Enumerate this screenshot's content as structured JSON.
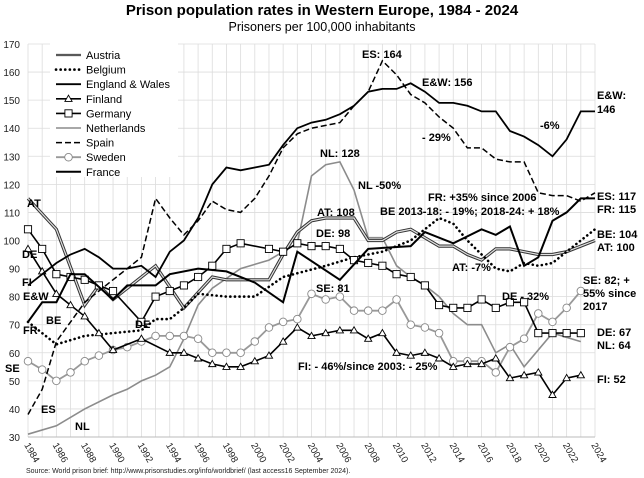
{
  "chart_data": {
    "type": "line",
    "title": "Prison population rates in Western Europe, 1984 - 2024",
    "subtitle": "Prisoners per 100,000 inhabitants",
    "source": "Source: World prison brief: http://www.prisonstudies.org/info/worldbrief/  (last access16 September 2024).",
    "xlim": [
      1984,
      2024
    ],
    "ylim": [
      30,
      170
    ],
    "x_ticks": [
      "1984",
      "1986",
      "1988",
      "1990",
      "1992",
      "1994",
      "1996",
      "1998",
      "2000",
      "2002",
      "2004",
      "2006",
      "2008",
      "2010",
      "2012",
      "2014",
      "2016",
      "2018",
      "2020",
      "2022",
      "2024"
    ],
    "y_ticks": [
      "30",
      "40",
      "50",
      "60",
      "70",
      "80",
      "90",
      "100",
      "110",
      "120",
      "130",
      "140",
      "150",
      "160",
      "170"
    ],
    "grid": true,
    "legend": "top-left",
    "series": [
      {
        "name": "Austria",
        "style": "double",
        "color": "#333333",
        "x": [
          1984,
          1986,
          1988,
          1989,
          1990,
          1993,
          1995,
          1997,
          1998,
          1999,
          2000,
          2001,
          2002,
          2003,
          2004,
          2005,
          2006,
          2007,
          2008,
          2009,
          2010,
          2011,
          2012,
          2013,
          2014,
          2015,
          2016,
          2017,
          2018,
          2019,
          2020,
          2021,
          2022,
          2023,
          2024
        ],
        "y": [
          115,
          104,
          77,
          84,
          79,
          91,
          76,
          87,
          86,
          86,
          86,
          86,
          95,
          103,
          107,
          108,
          108,
          108,
          100,
          100,
          103,
          104,
          101,
          98,
          98,
          95,
          93,
          97,
          97,
          96,
          95,
          95,
          96,
          98,
          100
        ]
      },
      {
        "name": "Belgium",
        "style": "dotted",
        "color": "#000000",
        "x": [
          1984,
          1986,
          1988,
          1990,
          1992,
          1993,
          1994,
          1995,
          1996,
          1998,
          2000,
          2002,
          2005,
          2007,
          2009,
          2011,
          2013,
          2014,
          2015,
          2016,
          2017,
          2018,
          2019,
          2020,
          2021,
          2022,
          2023,
          2024
        ],
        "y": [
          71,
          63,
          66,
          67,
          68,
          72,
          72,
          76,
          81,
          80,
          80,
          87,
          91,
          94,
          96,
          100,
          108,
          106,
          100,
          95,
          90,
          89,
          92,
          91,
          92,
          96,
          100,
          104
        ]
      },
      {
        "name": "England & Wales",
        "style": "solid",
        "color": "#000000",
        "x": [
          1984,
          1985,
          1986,
          1987,
          1988,
          1989,
          1990,
          1991,
          1992,
          1993,
          1994,
          1995,
          1996,
          1997,
          1998,
          1999,
          2000,
          2001,
          2002,
          2003,
          2004,
          2005,
          2006,
          2007,
          2008,
          2009,
          2010,
          2011,
          2012,
          2013,
          2014,
          2015,
          2016,
          2017,
          2018,
          2019,
          2020,
          2021,
          2022,
          2023,
          2024
        ],
        "y": [
          84,
          88,
          92,
          95,
          97,
          94,
          90,
          90,
          91,
          87,
          96,
          100,
          108,
          120,
          126,
          125,
          126,
          127,
          134,
          140,
          142,
          143,
          145,
          148,
          153,
          154,
          154,
          156,
          153,
          149,
          149,
          148,
          146,
          146,
          139,
          137,
          134,
          130,
          136,
          146,
          146
        ]
      },
      {
        "name": "Finland",
        "style": "triangle",
        "color": "#000000",
        "x": [
          1984,
          1985,
          1986,
          1987,
          1988,
          1989,
          1990,
          1992,
          1994,
          1995,
          1996,
          1997,
          1998,
          1999,
          2000,
          2001,
          2002,
          2003,
          2004,
          2005,
          2006,
          2007,
          2008,
          2009,
          2010,
          2011,
          2012,
          2013,
          2014,
          2015,
          2016,
          2017,
          2018,
          2019,
          2020,
          2021,
          2022,
          2023
        ],
        "y": [
          97,
          89,
          81,
          77,
          73,
          67,
          61,
          65,
          60,
          60,
          58,
          56,
          55,
          55,
          57,
          59,
          64,
          69,
          66,
          67,
          68,
          68,
          65,
          67,
          60,
          59,
          60,
          58,
          55,
          56,
          56,
          58,
          51,
          52,
          53,
          45,
          51,
          52
        ]
      },
      {
        "name": "Germany",
        "style": "square",
        "color": "#000000",
        "x": [
          1984,
          1985,
          1986,
          1987,
          1988,
          1989,
          1990,
          1992,
          1993,
          1994,
          1995,
          1996,
          1997,
          1998,
          1999,
          2001,
          2002,
          2003,
          2004,
          2005,
          2006,
          2007,
          2008,
          2009,
          2010,
          2011,
          2012,
          2013,
          2014,
          2015,
          2016,
          2017,
          2018,
          2019,
          2020,
          2021,
          2022,
          2023
        ],
        "y": [
          104,
          97,
          88,
          87,
          86,
          84,
          82,
          71,
          80,
          82,
          84,
          87,
          91,
          97,
          99,
          97,
          96,
          99,
          98,
          98,
          97,
          93,
          92,
          91,
          88,
          87,
          84,
          77,
          76,
          76,
          79,
          76,
          78,
          78,
          67,
          67,
          67,
          67
        ]
      },
      {
        "name": "Netherlands",
        "style": "solid",
        "color": "#8c8c8c",
        "x": [
          1984,
          1986,
          1988,
          1990,
          1991,
          1992,
          1993,
          1994,
          1995,
          1996,
          1997,
          1999,
          2001,
          2003,
          2004,
          2005,
          2006,
          2007,
          2008,
          2009,
          2010,
          2011,
          2012,
          2013,
          2014,
          2015,
          2016,
          2017,
          2018,
          2019,
          2021,
          2023
        ],
        "y": [
          31,
          34,
          40,
          45,
          47,
          50,
          52,
          55,
          65,
          77,
          83,
          90,
          93,
          99,
          123,
          127,
          128,
          118,
          101,
          101,
          91,
          87,
          84,
          80,
          74,
          70,
          70,
          60,
          63,
          55,
          67,
          64
        ]
      },
      {
        "name": "Spain",
        "style": "dashed",
        "color": "#000000",
        "x": [
          1984,
          1985,
          1986,
          1988,
          1989,
          1990,
          1992,
          1993,
          1994,
          1995,
          1996,
          1997,
          1998,
          1999,
          2000,
          2001,
          2002,
          2003,
          2004,
          2005,
          2006,
          2007,
          2008,
          2009,
          2010,
          2011,
          2012,
          2013,
          2014,
          2015,
          2016,
          2017,
          2018,
          2019,
          2020,
          2021,
          2022,
          2023,
          2024
        ],
        "y": [
          38,
          47,
          64,
          78,
          82,
          86,
          94,
          115,
          108,
          102,
          107,
          114,
          111,
          110,
          115,
          123,
          133,
          138,
          140,
          141,
          142,
          148,
          153,
          164,
          159,
          152,
          149,
          144,
          140,
          133,
          133,
          129,
          128,
          128,
          117,
          116,
          116,
          114,
          117
        ]
      },
      {
        "name": "Sweden",
        "style": "circle",
        "color": "#999999",
        "x": [
          1984,
          1985,
          1986,
          1987,
          1988,
          1989,
          1990,
          1991,
          1992,
          1993,
          1994,
          1995,
          1996,
          1997,
          1998,
          1999,
          2000,
          2001,
          2002,
          2003,
          2004,
          2005,
          2006,
          2007,
          2008,
          2009,
          2010,
          2011,
          2012,
          2013,
          2014,
          2015,
          2016,
          2017,
          2018,
          2019,
          2020,
          2021,
          2022,
          2023
        ],
        "y": [
          57,
          54,
          50,
          53,
          57,
          59,
          61,
          62,
          64,
          66,
          66,
          66,
          65,
          60,
          60,
          60,
          64,
          69,
          71,
          72,
          81,
          79,
          80,
          75,
          75,
          75,
          79,
          70,
          69,
          67,
          57,
          57,
          57,
          53,
          62,
          65,
          74,
          71,
          76,
          82
        ]
      },
      {
        "name": "France",
        "style": "solid-thick",
        "color": "#000000",
        "x": [
          1984,
          1985,
          1986,
          1987,
          1988,
          1990,
          1991,
          1993,
          1994,
          1996,
          1998,
          2000,
          2002,
          2003,
          2006,
          2008,
          2011,
          2012,
          2014,
          2016,
          2017,
          2018,
          2019,
          2020,
          2021,
          2022,
          2023,
          2024
        ],
        "y": [
          71,
          78,
          78,
          88,
          88,
          79,
          84,
          84,
          88,
          90,
          89,
          85,
          78,
          96,
          86,
          97,
          98,
          103,
          99,
          104,
          102,
          105,
          91,
          94,
          107,
          110,
          115,
          115
        ]
      }
    ],
    "annotations": [
      "AT",
      "DE",
      "FI",
      "E&W",
      "FR",
      "BE",
      "SE",
      "ES",
      "NL",
      "DE",
      "ES: 164",
      "E&W: 156",
      "- 29%",
      "-6%",
      "E&W:",
      "146",
      "NL: 128",
      "NL -50%",
      "AT: 108",
      "DE: 98",
      "SE: 81",
      "FR: +35% since 2006",
      "BE 2013-18: - 19%; 2018-24: + 18%",
      "AT: -7%",
      "ES: 117",
      "FR: 115",
      "BE: 104",
      "AT: 100",
      "SE: 82; +",
      "55% since",
      "2017",
      "DE - 32%",
      "DE: 67",
      "NL: 64",
      "FI: - 46%/since 2003: - 25%",
      "FI: 52"
    ]
  }
}
